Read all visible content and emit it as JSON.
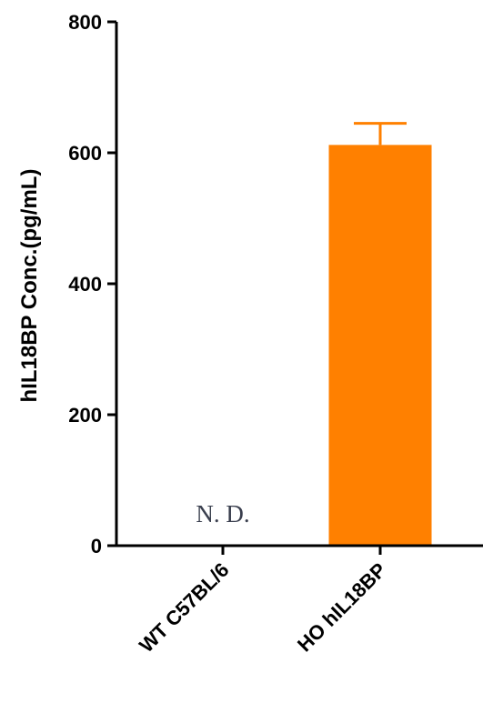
{
  "chart_data": {
    "type": "bar",
    "categories": [
      "WT C57BL/6",
      "HO hIL18BP"
    ],
    "values": [
      null,
      612
    ],
    "error": [
      null,
      33
    ],
    "ylabel": "hIL18BP Conc.(pg/mL)",
    "xlabel": "",
    "ylim": [
      0,
      800
    ],
    "yticks": [
      "0",
      "200",
      "400",
      "600",
      "800"
    ],
    "bar_color": "#ff8000",
    "annotations": [
      {
        "category": "WT C57BL/6",
        "text": "N. D."
      }
    ],
    "grid": false,
    "legend": "none"
  }
}
